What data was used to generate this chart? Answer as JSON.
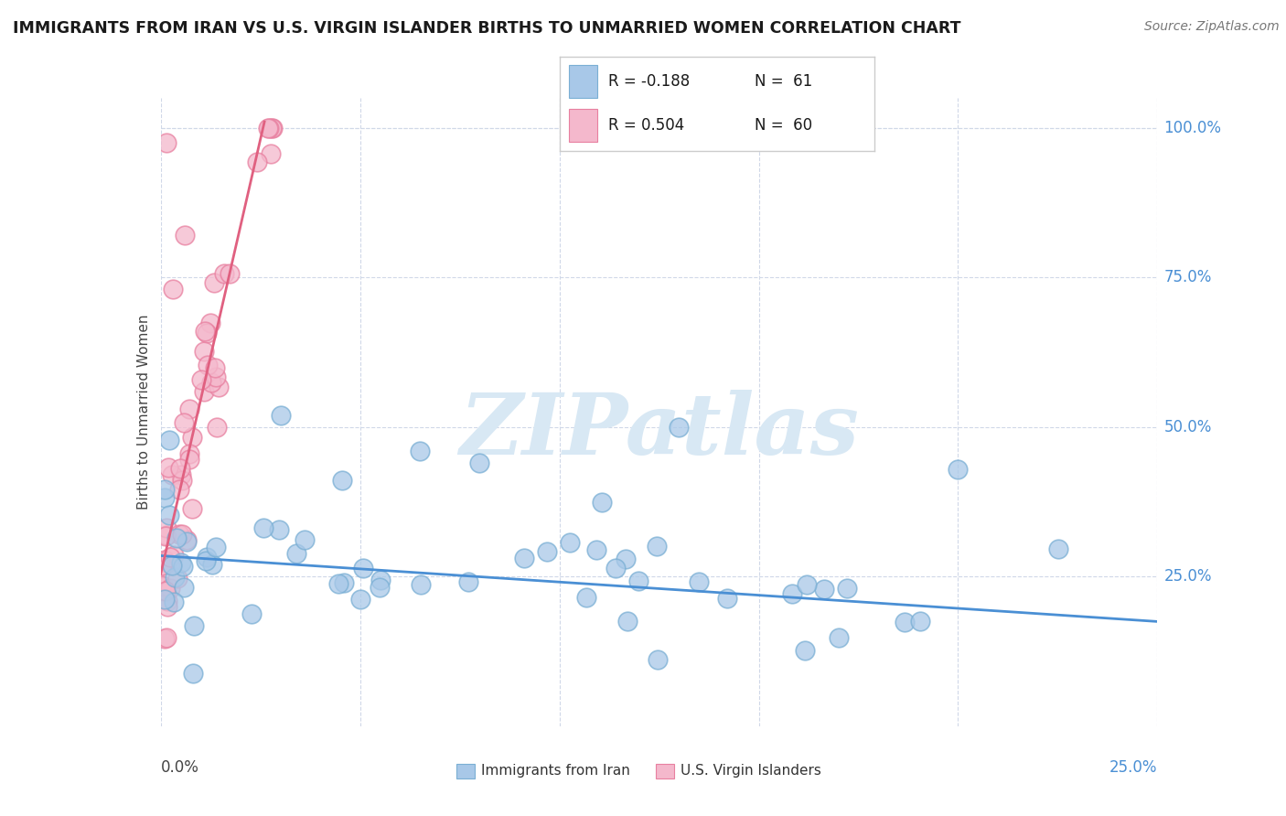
{
  "title": "IMMIGRANTS FROM IRAN VS U.S. VIRGIN ISLANDER BIRTHS TO UNMARRIED WOMEN CORRELATION CHART",
  "source": "Source: ZipAtlas.com",
  "ylabel": "Births to Unmarried Women",
  "legend_blue_r": "R = -0.188",
  "legend_blue_n": "N =  61",
  "legend_pink_r": "R = 0.504",
  "legend_pink_n": "N =  60",
  "blue_color": "#a8c8e8",
  "blue_edge_color": "#7aafd4",
  "pink_color": "#f4b8cc",
  "pink_edge_color": "#e880a0",
  "blue_line_color": "#4a8fd4",
  "pink_line_color": "#e06080",
  "background_color": "#ffffff",
  "grid_color": "#d0d8e8",
  "watermark": "ZIPatlas",
  "watermark_color": "#d8e8f4",
  "xlim": [
    0.0,
    0.25
  ],
  "ylim": [
    0.0,
    1.05
  ],
  "x_ticks": [
    0.0,
    0.25
  ],
  "x_tick_labels": [
    "0.0%",
    "25.0%"
  ],
  "y_ticks": [
    0.25,
    0.5,
    0.75,
    1.0
  ],
  "y_tick_labels": [
    "25.0%",
    "50.0%",
    "75.0%",
    "100.0%"
  ],
  "legend_label_blue": "Immigrants from Iran",
  "legend_label_pink": "U.S. Virgin Islanders",
  "blue_trend_x": [
    0.0,
    0.25
  ],
  "blue_trend_y": [
    0.285,
    0.175
  ],
  "pink_trend_x": [
    0.0,
    0.026
  ],
  "pink_trend_y": [
    0.255,
    1.01
  ]
}
